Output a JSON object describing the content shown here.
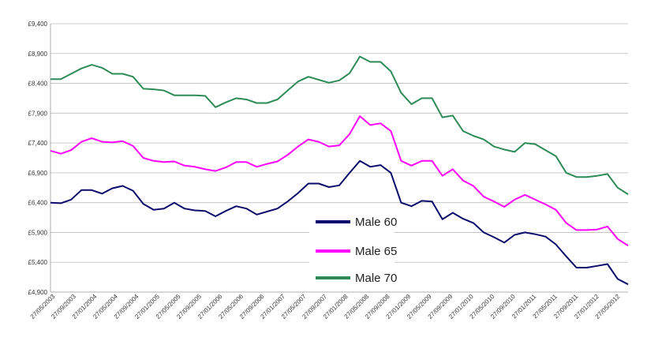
{
  "chart_data": {
    "type": "line",
    "title": "",
    "xlabel": "",
    "ylabel": "",
    "ylim": [
      4900,
      9400
    ],
    "y_ticks": [
      "£4,900",
      "£5,400",
      "£5,900",
      "£6,400",
      "£6,900",
      "£7,400",
      "£7,900",
      "£8,400",
      "£8,900",
      "£9,400"
    ],
    "x_ticks": [
      "27/05/2003",
      "27/09/2003",
      "27/01/2004",
      "27/05/2004",
      "27/09/2004",
      "27/01/2005",
      "27/05/2005",
      "27/09/2005",
      "27/01/2006",
      "27/05/2006",
      "27/09/2006",
      "27/01/2007",
      "27/05/2007",
      "27/09/2007",
      "27/01/2008",
      "27/05/2008",
      "27/09/2008",
      "27/01/2009",
      "27/05/2009",
      "27/09/2009",
      "27/01/2010",
      "27/05/2010",
      "27/09/2010",
      "27/01/2011",
      "27/05/2011",
      "27/09/2011",
      "27/01/2012",
      "27/05/2012"
    ],
    "grid": "horizontal",
    "legend_position": "center-bottom",
    "x": [
      "2003-05",
      "2003-07",
      "2003-09",
      "2003-11",
      "2004-01",
      "2004-03",
      "2004-05",
      "2004-07",
      "2004-09",
      "2004-11",
      "2005-01",
      "2005-03",
      "2005-05",
      "2005-07",
      "2005-09",
      "2005-11",
      "2006-01",
      "2006-03",
      "2006-05",
      "2006-07",
      "2006-09",
      "2006-11",
      "2007-01",
      "2007-03",
      "2007-05",
      "2007-07",
      "2007-09",
      "2007-11",
      "2008-01",
      "2008-03",
      "2008-05",
      "2008-07",
      "2008-09",
      "2008-11",
      "2009-01",
      "2009-03",
      "2009-05",
      "2009-07",
      "2009-09",
      "2009-11",
      "2010-01",
      "2010-03",
      "2010-05",
      "2010-07",
      "2010-09",
      "2010-11",
      "2011-01",
      "2011-03",
      "2011-05",
      "2011-07",
      "2011-09",
      "2011-11",
      "2012-01",
      "2012-03",
      "2012-05",
      "2012-07",
      "2012-09"
    ],
    "series": [
      {
        "name": "Male 60",
        "color": "#0b0b6b",
        "values": [
          6400,
          6390,
          6450,
          6610,
          6610,
          6550,
          6640,
          6680,
          6600,
          6380,
          6280,
          6300,
          6400,
          6300,
          6270,
          6260,
          6170,
          6260,
          6340,
          6300,
          6200,
          6250,
          6300,
          6420,
          6560,
          6720,
          6720,
          6660,
          6690,
          6900,
          7100,
          7000,
          7030,
          6900,
          6400,
          6340,
          6430,
          6420,
          6120,
          6230,
          6130,
          6060,
          5900,
          5820,
          5730,
          5860,
          5900,
          5870,
          5830,
          5700,
          5500,
          5310,
          5310,
          5340,
          5370,
          5120,
          5030
        ]
      },
      {
        "name": "Male 65",
        "color": "#ff00ff",
        "values": [
          7270,
          7220,
          7280,
          7420,
          7480,
          7420,
          7410,
          7430,
          7350,
          7150,
          7100,
          7080,
          7090,
          7020,
          7000,
          6960,
          6930,
          6990,
          7080,
          7080,
          7000,
          7050,
          7090,
          7200,
          7340,
          7460,
          7420,
          7340,
          7360,
          7550,
          7850,
          7700,
          7730,
          7600,
          7100,
          7020,
          7100,
          7100,
          6850,
          6960,
          6770,
          6680,
          6500,
          6420,
          6330,
          6450,
          6530,
          6450,
          6370,
          6280,
          6060,
          5940,
          5940,
          5950,
          6000,
          5790,
          5680
        ]
      },
      {
        "name": "Male 70",
        "color": "#2e8b57",
        "values": [
          8470,
          8470,
          8560,
          8650,
          8710,
          8660,
          8560,
          8560,
          8510,
          8310,
          8300,
          8280,
          8200,
          8200,
          8200,
          8190,
          8000,
          8080,
          8150,
          8130,
          8070,
          8070,
          8130,
          8280,
          8430,
          8510,
          8460,
          8410,
          8450,
          8570,
          8850,
          8760,
          8760,
          8600,
          8240,
          8050,
          8150,
          8150,
          7830,
          7860,
          7600,
          7520,
          7460,
          7340,
          7290,
          7250,
          7400,
          7380,
          7280,
          7180,
          6900,
          6830,
          6830,
          6850,
          6880,
          6650,
          6540
        ]
      }
    ]
  }
}
